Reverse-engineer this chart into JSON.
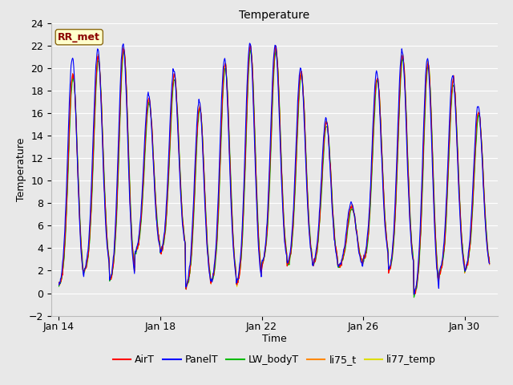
{
  "title": "Temperature",
  "xlabel": "Time",
  "ylabel": "Temperature",
  "ylim": [
    -2,
    24
  ],
  "yticks": [
    -2,
    0,
    2,
    4,
    6,
    8,
    10,
    12,
    14,
    16,
    18,
    20,
    22,
    24
  ],
  "plot_bg_color": "#e8e8e8",
  "grid_color": "white",
  "series": [
    "AirT",
    "PanelT",
    "LW_bodyT",
    "li75_t",
    "li77_temp"
  ],
  "colors": [
    "#ff0000",
    "#0000ff",
    "#00bb00",
    "#ff8800",
    "#dddd00"
  ],
  "linewidths": [
    0.8,
    0.8,
    0.8,
    0.8,
    0.8
  ],
  "annotation_text": "RR_met",
  "annotation_color": "#8b0000",
  "annotation_bg": "#ffffcc",
  "annotation_border": "#8b6914",
  "tick_days": [
    14,
    18,
    22,
    26,
    30
  ],
  "tick_labels": [
    "Jan 14",
    "Jan 18",
    "Jan 22",
    "Jan 26",
    "Jan 30"
  ],
  "xlim": [
    13.7,
    31.3
  ],
  "n_days": 17,
  "n_per_day": 48,
  "seed": 7,
  "day_maxes": [
    19.5,
    20.9,
    21.7,
    17.2,
    19.3,
    16.6,
    20.3,
    21.9,
    21.8,
    19.7,
    15.2,
    7.8,
    19.2,
    21.1,
    20.5,
    18.9,
    16.1
  ],
  "day_mins": [
    0.5,
    1.8,
    0.9,
    3.5,
    3.5,
    0.4,
    0.8,
    0.6,
    2.4,
    2.3,
    2.4,
    2.3,
    2.8,
    1.8,
    -0.3,
    1.7,
    1.9
  ],
  "panel_extra": [
    1.5,
    0.8,
    0.5,
    0.5,
    0.5,
    0.5,
    0.5,
    0.3,
    0.3,
    0.3,
    0.3,
    0.3,
    0.4,
    0.4,
    0.3,
    0.4,
    0.5
  ]
}
